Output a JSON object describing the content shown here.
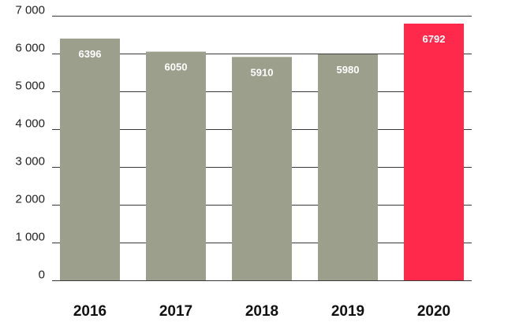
{
  "chart_data": {
    "type": "bar",
    "title": "",
    "xlabel": "",
    "ylabel": "",
    "categories": [
      "2016",
      "2017",
      "2018",
      "2019",
      "2020"
    ],
    "values": [
      6396,
      6050,
      5910,
      5980,
      6792
    ],
    "data_labels": [
      "6396",
      "6050",
      "5910",
      "5980",
      "6792"
    ],
    "ylim": [
      0,
      7000
    ],
    "yticks": [
      0,
      1000,
      2000,
      3000,
      4000,
      5000,
      6000,
      7000
    ],
    "ytick_labels": [
      "0",
      "1 000",
      "2 000",
      "3 000",
      "4 000",
      "5 000",
      "6 000",
      "7 000"
    ],
    "grid": true,
    "legend": "none",
    "colors": {
      "default_bar": "#9c9f8c",
      "highlight_bar": "#ff2a4b",
      "grid": "#3a3a3a"
    },
    "highlight_index": 4
  }
}
